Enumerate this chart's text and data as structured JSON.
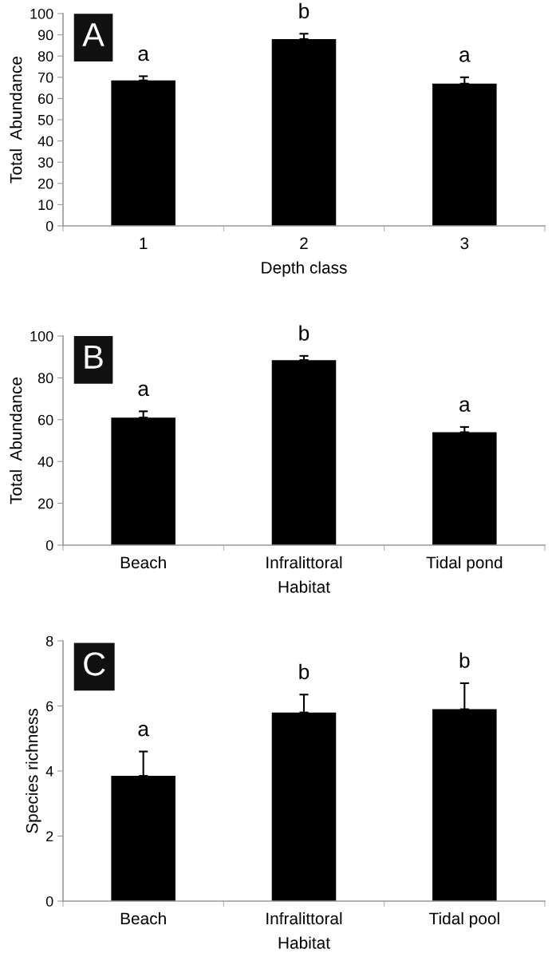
{
  "chart_data": [
    {
      "type": "bar",
      "title": "A",
      "xlabel": "Depth class",
      "ylabel": "Total  Abundance",
      "categories": [
        "1",
        "2",
        "3"
      ],
      "values": [
        68.5,
        88,
        67
      ],
      "color": "#000000",
      "errors": [
        [
          68.5,
          70.5
        ],
        [
          88,
          90.5
        ],
        [
          67,
          70
        ]
      ],
      "ylim": [
        0,
        100
      ],
      "yticks": [
        0,
        10,
        20,
        30,
        40,
        50,
        60,
        70,
        80,
        90,
        100
      ],
      "grid": false,
      "annotations": [
        "a",
        "b",
        "a"
      ]
    },
    {
      "type": "bar",
      "title": "B",
      "xlabel": "Habitat",
      "ylabel": "Total  Abundance",
      "categories": [
        "Beach",
        "Infralittoral",
        "Tidal pond"
      ],
      "values": [
        61,
        88.5,
        54
      ],
      "color": "#000000",
      "errors": [
        [
          61,
          64
        ],
        [
          88.5,
          90.5
        ],
        [
          54,
          56.5
        ]
      ],
      "ylim": [
        0,
        100
      ],
      "yticks": [
        0,
        20,
        40,
        60,
        80,
        100
      ],
      "grid": false,
      "annotations": [
        "a",
        "b",
        "a"
      ]
    },
    {
      "type": "bar",
      "title": "C",
      "xlabel": "Habitat",
      "ylabel": "Species richness",
      "categories": [
        "Beach",
        "Infralittoral",
        "Tidal pool"
      ],
      "values": [
        3.85,
        5.8,
        5.9
      ],
      "color": "#000000",
      "errors": [
        [
          3.85,
          4.6
        ],
        [
          5.8,
          6.35
        ],
        [
          5.9,
          6.7
        ]
      ],
      "ylim": [
        0,
        8
      ],
      "yticks": [
        0,
        2,
        4,
        6,
        8
      ],
      "grid": false,
      "annotations": [
        "a",
        "b",
        "b"
      ]
    }
  ]
}
